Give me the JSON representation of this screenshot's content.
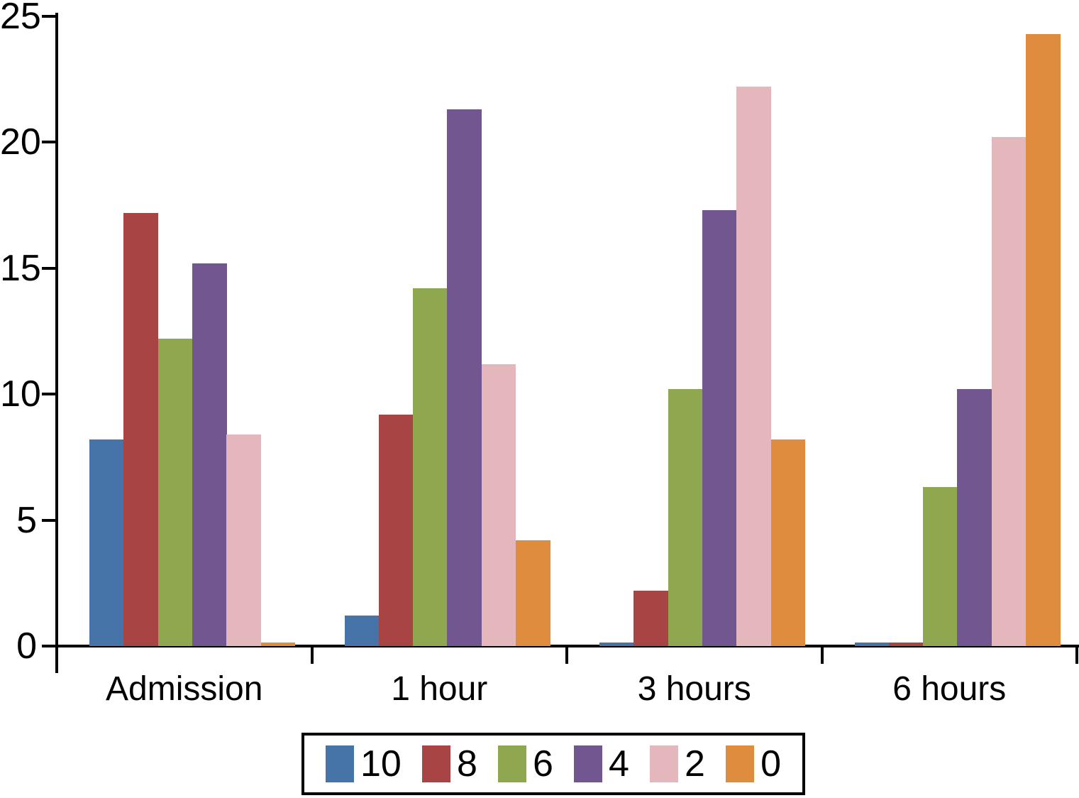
{
  "chart_data": {
    "type": "bar",
    "title": "",
    "xlabel": "",
    "ylabel": "",
    "categories": [
      "Admission",
      "1 hour",
      "3 hours",
      "6 hours"
    ],
    "series": [
      {
        "name": "10",
        "color": "#4673A8",
        "values": [
          8.2,
          1.2,
          0.15,
          0.15
        ]
      },
      {
        "name": "8",
        "color": "#A84444",
        "values": [
          17.2,
          9.2,
          2.2,
          0.15
        ]
      },
      {
        "name": "6",
        "color": "#8FA850",
        "values": [
          12.2,
          14.2,
          10.2,
          6.3
        ]
      },
      {
        "name": "4",
        "color": "#71568F",
        "values": [
          15.2,
          21.3,
          17.3,
          10.2
        ]
      },
      {
        "name": "2",
        "color": "#E4B7BD",
        "values": [
          8.4,
          11.2,
          22.2,
          20.2
        ]
      },
      {
        "name": "0",
        "color": "#E08C3E",
        "values": [
          0.15,
          4.2,
          8.2,
          24.3
        ]
      }
    ],
    "ylim": [
      0,
      25
    ],
    "yticks": [
      0,
      5,
      10,
      15,
      20,
      25
    ],
    "grid": false,
    "legend_position": "bottom",
    "axis_color": "#000000"
  }
}
